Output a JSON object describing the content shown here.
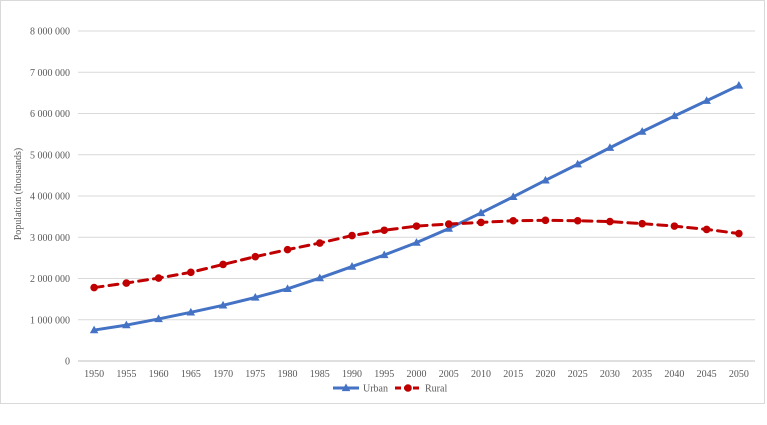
{
  "chart_data": {
    "type": "line",
    "title": "",
    "xlabel": "",
    "ylabel": "Population (thousands)",
    "ylim": [
      0,
      8000000
    ],
    "yticks": [
      0,
      1000000,
      2000000,
      3000000,
      4000000,
      5000000,
      6000000,
      7000000,
      8000000
    ],
    "ytick_labels": [
      "0",
      "1 000 000",
      "2 000 000",
      "3 000 000",
      "4 000 000",
      "5 000 000",
      "6 000 000",
      "7 000 000",
      "8 000 000"
    ],
    "grid": true,
    "legend_position": "bottom",
    "x": [
      "1950",
      "1955",
      "1960",
      "1965",
      "1970",
      "1975",
      "1980",
      "1985",
      "1990",
      "1995",
      "2000",
      "2005",
      "2010",
      "2015",
      "2020",
      "2025",
      "2030",
      "2035",
      "2040",
      "2045",
      "2050"
    ],
    "series": [
      {
        "name": "Urban",
        "color": "#4472c4",
        "line_style": "solid",
        "marker": "triangle",
        "values": [
          750000,
          870000,
          1020000,
          1180000,
          1350000,
          1540000,
          1750000,
          2010000,
          2290000,
          2570000,
          2870000,
          3210000,
          3590000,
          3980000,
          4380000,
          4770000,
          5170000,
          5560000,
          5940000,
          6310000,
          6680000
        ]
      },
      {
        "name": "Rural",
        "color": "#c00000",
        "line_style": "dashed",
        "marker": "circle",
        "values": [
          1780000,
          1890000,
          2010000,
          2150000,
          2340000,
          2530000,
          2700000,
          2860000,
          3040000,
          3170000,
          3270000,
          3320000,
          3360000,
          3400000,
          3410000,
          3400000,
          3380000,
          3330000,
          3270000,
          3190000,
          3090000
        ]
      }
    ]
  }
}
